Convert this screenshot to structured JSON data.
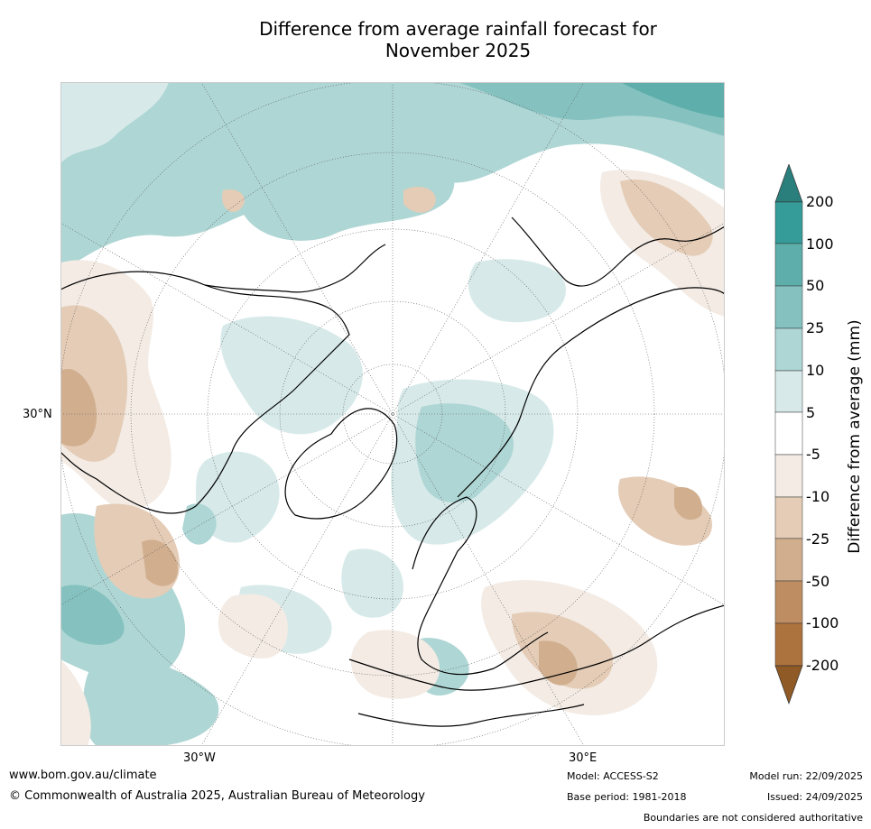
{
  "title_line1": "Difference from average rainfall forecast for",
  "title_line2": "November 2025",
  "map": {
    "lat_label": "30°N",
    "lon_label_west": "30°W",
    "lon_label_east": "30°E"
  },
  "colorbar": {
    "title": "Difference from average (mm)",
    "ticks": [
      "200",
      "100",
      "50",
      "25",
      "10",
      "5",
      "-5",
      "-10",
      "-25",
      "-50",
      "-100",
      "-200"
    ],
    "colors": {
      "above_200": "#2a7e7c",
      "100_200": "#359c99",
      "50_100": "#5eaeab",
      "25_50": "#85c2bf",
      "10_25": "#aed6d4",
      "5_10": "#d7eae9",
      "neutral": "#ffffff",
      "m5_m10": "#f3ebe4",
      "m10_m25": "#e4ccb6",
      "m25_m50": "#d1ae8e",
      "m50_m100": "#bf8d62",
      "m100_m200": "#ad733e",
      "below_m200": "#8f5a25"
    }
  },
  "footer": {
    "website": "www.bom.gov.au/climate",
    "copyright": "© Commonwealth of Australia 2025, Australian Bureau of Meteorology",
    "model": "Model: ACCESS-S2",
    "base_period": "Base period: 1981-2018",
    "model_run": "Model run: 22/09/2025",
    "issued": "Issued: 24/09/2025",
    "disclaimer": "Boundaries are not considered authoritative"
  }
}
